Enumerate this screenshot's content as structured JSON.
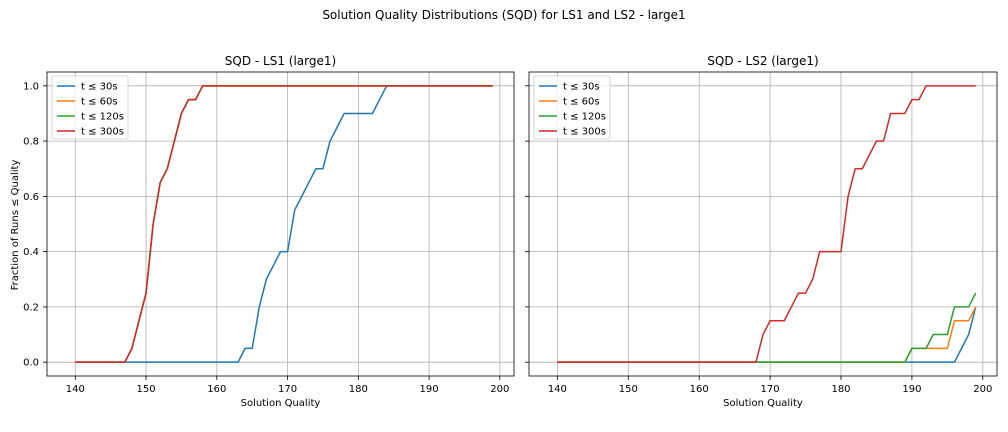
{
  "figure": {
    "title": "Solution Quality Distributions (SQD) for LS1 and LS2 - large1",
    "ylabel": "Fraction of Runs ≤ Quality"
  },
  "series_colors": [
    "#1f77b4",
    "#ff7f0e",
    "#2ca02c",
    "#d62728"
  ],
  "chart_data": [
    {
      "type": "line",
      "title": "SQD - LS1 (large1)",
      "xlabel": "Solution Quality",
      "ylabel": "Fraction of Runs ≤ Quality",
      "xlim": [
        136,
        202
      ],
      "ylim": [
        -0.05,
        1.05
      ],
      "xticks": [
        140,
        150,
        160,
        170,
        180,
        190,
        200
      ],
      "yticks": [
        0.0,
        0.2,
        0.4,
        0.6,
        0.8,
        1.0
      ],
      "ytick_labels": [
        "0.0",
        "0.2",
        "0.4",
        "0.6",
        "0.8",
        "1.0"
      ],
      "grid": true,
      "legend_position": "top-left",
      "series": [
        {
          "name": "t ≤ 30s",
          "color": "#1f77b4",
          "x": [
            140,
            163,
            164,
            165,
            166,
            167,
            168,
            169,
            170,
            171,
            172,
            173,
            174,
            175,
            176,
            177,
            178,
            179,
            180,
            181,
            182,
            183,
            184,
            199
          ],
          "y": [
            0,
            0,
            0.05,
            0.05,
            0.2,
            0.3,
            0.35,
            0.4,
            0.4,
            0.55,
            0.6,
            0.65,
            0.7,
            0.7,
            0.8,
            0.85,
            0.9,
            0.9,
            0.9,
            0.9,
            0.9,
            0.95,
            1.0,
            1.0
          ]
        },
        {
          "name": "t ≤ 60s",
          "color": "#ff7f0e",
          "x": [
            140,
            147,
            148,
            149,
            150,
            151,
            152,
            153,
            154,
            155,
            156,
            157,
            158,
            199
          ],
          "y": [
            0,
            0,
            0.05,
            0.15,
            0.25,
            0.5,
            0.65,
            0.7,
            0.8,
            0.9,
            0.95,
            0.95,
            1.0,
            1.0
          ]
        },
        {
          "name": "t ≤ 120s",
          "color": "#2ca02c",
          "x": [
            140,
            147,
            148,
            149,
            150,
            151,
            152,
            153,
            154,
            155,
            156,
            157,
            158,
            199
          ],
          "y": [
            0,
            0,
            0.05,
            0.15,
            0.25,
            0.5,
            0.65,
            0.7,
            0.8,
            0.9,
            0.95,
            0.95,
            1.0,
            1.0
          ]
        },
        {
          "name": "t ≤ 300s",
          "color": "#d62728",
          "x": [
            140,
            147,
            148,
            149,
            150,
            151,
            152,
            153,
            154,
            155,
            156,
            157,
            158,
            199
          ],
          "y": [
            0,
            0,
            0.05,
            0.15,
            0.25,
            0.5,
            0.65,
            0.7,
            0.8,
            0.9,
            0.95,
            0.95,
            1.0,
            1.0
          ]
        }
      ]
    },
    {
      "type": "line",
      "title": "SQD - LS2 (large1)",
      "xlabel": "Solution Quality",
      "ylabel": "",
      "xlim": [
        136,
        202
      ],
      "ylim": [
        -0.05,
        1.05
      ],
      "xticks": [
        140,
        150,
        160,
        170,
        180,
        190,
        200
      ],
      "yticks": [
        0.0,
        0.2,
        0.4,
        0.6,
        0.8,
        1.0
      ],
      "ytick_labels": [
        "",
        "",
        "",
        "",
        "",
        ""
      ],
      "grid": true,
      "legend_position": "top-left",
      "series": [
        {
          "name": "t ≤ 30s",
          "color": "#1f77b4",
          "x": [
            140,
            196,
            197,
            198,
            199
          ],
          "y": [
            0,
            0,
            0.05,
            0.1,
            0.2
          ]
        },
        {
          "name": "t ≤ 60s",
          "color": "#ff7f0e",
          "x": [
            140,
            189,
            190,
            191,
            192,
            193,
            194,
            195,
            196,
            197,
            198,
            199
          ],
          "y": [
            0,
            0,
            0.05,
            0.05,
            0.05,
            0.05,
            0.05,
            0.05,
            0.15,
            0.15,
            0.15,
            0.2
          ]
        },
        {
          "name": "t ≤ 120s",
          "color": "#2ca02c",
          "x": [
            140,
            189,
            190,
            191,
            192,
            193,
            194,
            195,
            196,
            197,
            198,
            199
          ],
          "y": [
            0,
            0,
            0.05,
            0.05,
            0.05,
            0.1,
            0.1,
            0.1,
            0.2,
            0.2,
            0.2,
            0.25
          ]
        },
        {
          "name": "t ≤ 300s",
          "color": "#d62728",
          "x": [
            140,
            168,
            169,
            170,
            171,
            172,
            173,
            174,
            175,
            176,
            177,
            178,
            179,
            180,
            181,
            182,
            183,
            184,
            185,
            186,
            187,
            188,
            189,
            190,
            191,
            192,
            193,
            199
          ],
          "y": [
            0,
            0,
            0.1,
            0.15,
            0.15,
            0.15,
            0.2,
            0.25,
            0.25,
            0.3,
            0.4,
            0.4,
            0.4,
            0.4,
            0.6,
            0.7,
            0.7,
            0.75,
            0.8,
            0.8,
            0.9,
            0.9,
            0.9,
            0.95,
            0.95,
            1.0,
            1.0,
            1.0
          ]
        }
      ]
    }
  ]
}
